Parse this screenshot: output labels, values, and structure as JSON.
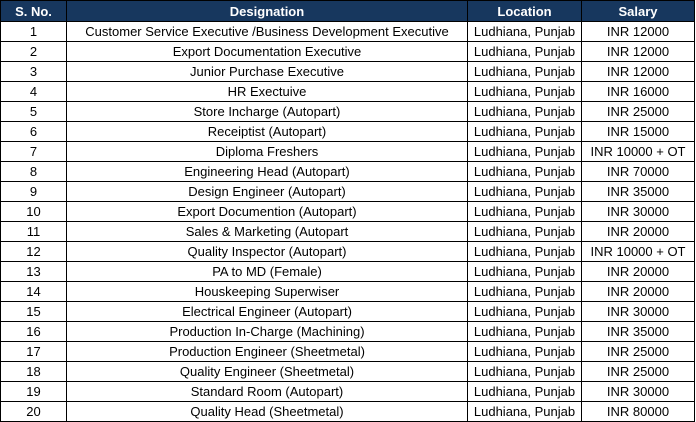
{
  "table": {
    "header_color": "#17375e",
    "headers": [
      "S. No.",
      "Designation",
      "Location",
      "Salary"
    ],
    "rows": [
      [
        "1",
        "Customer Service Executive /Business Development Executive",
        "Ludhiana, Punjab",
        "INR 12000"
      ],
      [
        "2",
        "Export Documentation Executive",
        "Ludhiana, Punjab",
        "INR 12000"
      ],
      [
        "3",
        "Junior Purchase Executive",
        "Ludhiana, Punjab",
        "INR 12000"
      ],
      [
        "4",
        "HR Exectuive",
        "Ludhiana, Punjab",
        "INR 16000"
      ],
      [
        "5",
        "Store Incharge (Autopart)",
        "Ludhiana, Punjab",
        "INR 25000"
      ],
      [
        "6",
        "Receiptist (Autopart)",
        "Ludhiana, Punjab",
        "INR 15000"
      ],
      [
        "7",
        "Diploma Freshers",
        "Ludhiana, Punjab",
        "INR 10000 + OT"
      ],
      [
        "8",
        "Engineering Head (Autopart)",
        "Ludhiana, Punjab",
        "INR 70000"
      ],
      [
        "9",
        "Design Engineer (Autopart)",
        "Ludhiana, Punjab",
        "INR 35000"
      ],
      [
        "10",
        "Export Documention (Autopart)",
        "Ludhiana, Punjab",
        "INR 30000"
      ],
      [
        "11",
        "Sales & Marketing (Autopart",
        "Ludhiana, Punjab",
        "INR 20000"
      ],
      [
        "12",
        "Quality Inspector (Autopart)",
        "Ludhiana, Punjab",
        "INR 10000 + OT"
      ],
      [
        "13",
        "PA to MD (Female)",
        "Ludhiana, Punjab",
        "INR 20000"
      ],
      [
        "14",
        "Houskeeping Superwiser",
        "Ludhiana, Punjab",
        "INR 20000"
      ],
      [
        "15",
        "Electrical Engineer (Autopart)",
        "Ludhiana, Punjab",
        "INR 30000"
      ],
      [
        "16",
        "Production In-Charge (Machining)",
        "Ludhiana, Punjab",
        "INR 35000"
      ],
      [
        "17",
        "Production Engineer (Sheetmetal)",
        "Ludhiana, Punjab",
        "INR 25000"
      ],
      [
        "18",
        "Quality Engineer (Sheetmetal)",
        "Ludhiana, Punjab",
        "INR 25000"
      ],
      [
        "19",
        "Standard Room (Autopart)",
        "Ludhiana, Punjab",
        "INR 30000"
      ],
      [
        "20",
        "Quality Head (Sheetmetal)",
        "Ludhiana, Punjab",
        "INR 80000"
      ]
    ]
  }
}
